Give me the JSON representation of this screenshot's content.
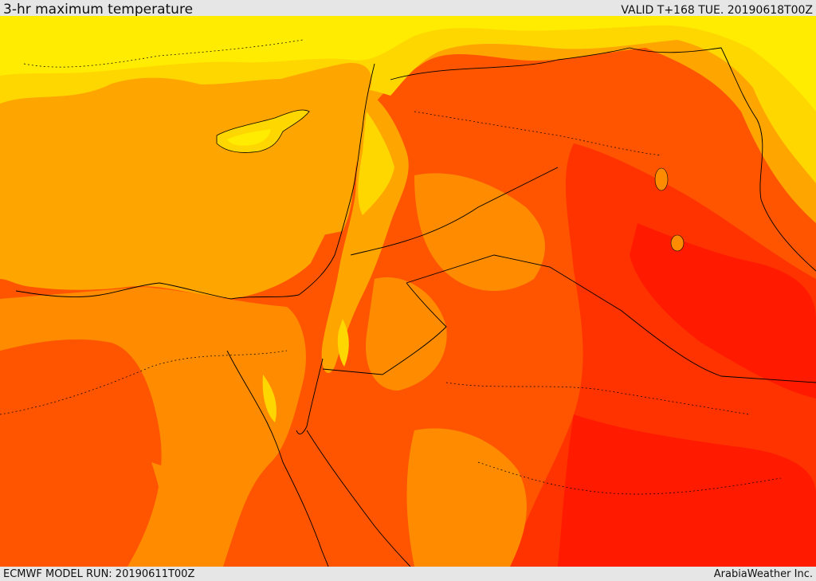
{
  "header": {
    "title": "3-hr maximum temperature",
    "valid": "VALID T+168 TUE. 20190618T00Z"
  },
  "footer": {
    "model_run": "ECMWF MODEL RUN: 20190611T00Z",
    "credit": "ArabiaWeather Inc."
  },
  "palette": {
    "sea_orange": "#ffa500",
    "cool_yellow": "#ffd700",
    "mild_yellow": "#ffec00",
    "warm_orange": "#ff8c00",
    "hot_orange": "#ff5500",
    "very_hot": "#ff3300",
    "extreme": "#ff1a00",
    "border_line": "#000000"
  }
}
